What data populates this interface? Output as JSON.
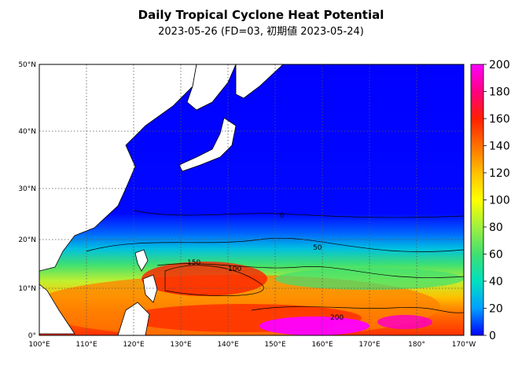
{
  "title": "Daily Tropical Cyclone Heat Potential",
  "subtitle": "2023-05-26 (FD=03, 初期値 2023-05-24)",
  "lon_labels": [
    "100°E",
    "110°E",
    "120°E",
    "130°E",
    "140°E",
    "150°E",
    "160°E",
    "170°E",
    "180°",
    "170°W"
  ],
  "lat_labels": [
    "0°",
    "10°N",
    "20°N",
    "30°N",
    "40°N",
    "50°N"
  ],
  "colorbar": {
    "ticks": [
      "0",
      "20",
      "40",
      "60",
      "80",
      "100",
      "120",
      "140",
      "160",
      "180",
      "200"
    ],
    "colors": [
      "#0000ff",
      "#00a0ff",
      "#00e0c0",
      "#40e070",
      "#a0f040",
      "#ffff00",
      "#ffc000",
      "#ff7000",
      "#ff2000",
      "#ff0080",
      "#ff00ff"
    ]
  },
  "contour_labels": [
    "0",
    "50",
    "100",
    "150",
    "200"
  ],
  "chart_data": {
    "type": "heatmap",
    "title": "Daily Tropical Cyclone Heat Potential",
    "subtitle": "2023-05-26 (FD=03, 初期値 2023-05-24)",
    "x_range": [
      "100°E",
      "170°W"
    ],
    "y_range": [
      "0°",
      "50°N"
    ],
    "colorbar_range": [
      0,
      200
    ],
    "contour_levels": [
      0,
      50,
      100,
      150,
      200
    ],
    "grid": true
  }
}
